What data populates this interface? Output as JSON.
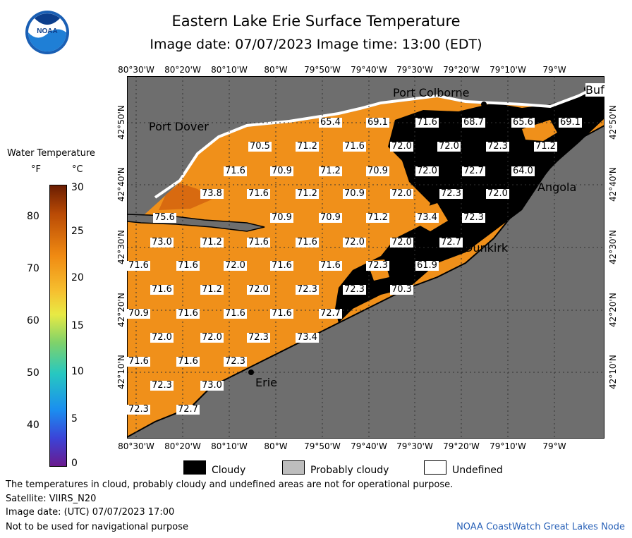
{
  "header": {
    "title": "Eastern Lake Erie Surface Temperature",
    "subtitle": "Image date: 07/07/2023      Image time: 13:00 (EDT)",
    "logo_text": "NOAA"
  },
  "axes": {
    "lon_labels": [
      "80°30'W",
      "80°20'W",
      "80°10'W",
      "80°W",
      "79°50'W",
      "79°40'W",
      "79°30'W",
      "79°20'W",
      "79°10'W",
      "79°W"
    ],
    "lat_labels": [
      "42°50'N",
      "42°40'N",
      "42°30'N",
      "42°20'N",
      "42°10'N"
    ]
  },
  "places": {
    "port_colborne": "Port Colborne",
    "port_dover": "Port Dover",
    "angola": "Angola",
    "dunkirk": "Dunkirk",
    "erie": "Erie",
    "buffalo": "Buf"
  },
  "temps": [
    "65.4",
    "69.1",
    "71.6",
    "68.7",
    "65.6",
    "69.1",
    "70.5",
    "71.2",
    "71.6",
    "72.0",
    "72.0",
    "72.3",
    "71.2",
    "71.6",
    "70.9",
    "71.2",
    "70.9",
    "72.0",
    "72.7",
    "64.0",
    "73.8",
    "71.6",
    "71.2",
    "70.9",
    "72.0",
    "72.3",
    "72.0",
    "75.6",
    "70.9",
    "70.9",
    "71.2",
    "73.4",
    "72.3",
    "73.0",
    "71.2",
    "71.6",
    "71.6",
    "72.0",
    "72.0",
    "72.7",
    "71.6",
    "71.6",
    "72.0",
    "71.6",
    "71.6",
    "72.3",
    "61.9",
    "71.6",
    "71.2",
    "72.0",
    "72.3",
    "72.3",
    "70.3",
    "70.9",
    "71.6",
    "71.6",
    "71.6",
    "72.7",
    "72.0",
    "72.0",
    "72.3",
    "73.4",
    "71.6",
    "71.6",
    "72.3",
    "72.3",
    "73.0",
    "72.3",
    "72.7"
  ],
  "legend": {
    "title": "Water Temperature",
    "unit_f": "°F",
    "unit_c": "°C",
    "f_ticks": [
      "80",
      "70",
      "60",
      "50",
      "40"
    ],
    "c_ticks": [
      "30",
      "25",
      "20",
      "15",
      "10",
      "5",
      "0"
    ],
    "cloudy": "Cloudy",
    "probably_cloudy": "Probably cloudy",
    "undefined": "Undefined",
    "colors": {
      "cloudy": "#000000",
      "probably_cloudy": "#bdbdbd",
      "undefined": "#ffffff",
      "land": "#6e6e6e",
      "water": "#f0901a"
    }
  },
  "footer": {
    "line1": "The temperatures in cloud, probably cloudy and undefined areas are not for operational purpose.",
    "line2": "Satellite: VIIRS_N20",
    "line3": "Image date: (UTC) 07/07/2023  17:00",
    "line4": "Not to be used for navigational purpose",
    "credit": "NOAA CoastWatch Great Lakes Node"
  }
}
